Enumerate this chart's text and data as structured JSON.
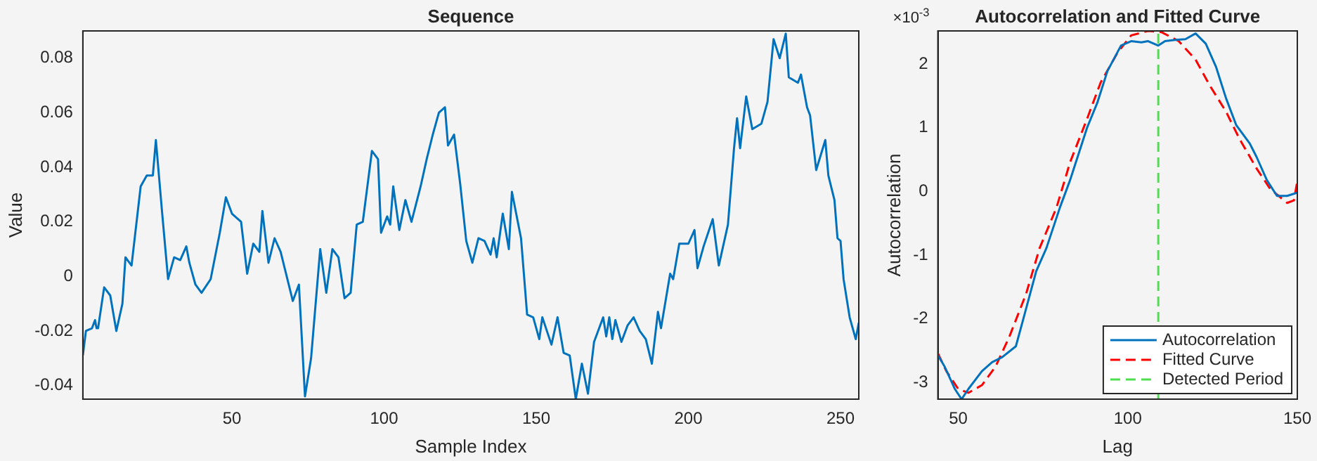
{
  "chart_data": [
    {
      "type": "line",
      "title": "Sequence",
      "xlabel": "Sample Index",
      "ylabel": "Value",
      "xlim": [
        1,
        256
      ],
      "xticks": [
        50,
        100,
        150,
        200,
        250
      ],
      "ylim": [
        -0.045,
        0.09
      ],
      "yticks": [
        -0.04,
        -0.02,
        0,
        0.02,
        0.04,
        0.06,
        0.08
      ],
      "grid": false,
      "marker": "none",
      "series": [
        {
          "color": "#0072bd",
          "x": [
            1,
            2,
            4,
            5,
            5.5,
            6,
            8,
            10,
            12,
            14,
            15,
            17,
            20,
            22,
            24,
            25,
            27,
            29,
            31,
            33,
            35,
            36,
            38,
            40,
            43,
            46,
            48,
            50,
            53,
            55,
            57,
            59,
            60,
            62,
            64,
            66,
            68,
            70,
            72,
            74,
            76,
            79,
            81,
            83,
            85,
            87,
            89,
            91,
            93,
            96,
            98,
            99,
            101,
            102,
            103,
            105,
            107,
            109,
            112,
            114,
            116,
            118,
            120,
            121,
            123,
            125,
            127,
            129,
            131,
            133,
            135,
            136,
            137,
            139,
            141,
            142,
            145,
            147,
            149,
            151,
            152,
            155,
            157,
            159,
            161,
            163,
            165,
            167,
            169,
            172,
            173,
            174,
            175,
            176,
            178,
            180,
            182,
            184,
            186,
            188,
            190,
            191,
            194,
            195,
            197,
            200,
            202,
            203,
            205,
            208,
            210,
            213,
            215,
            216,
            217,
            219,
            221,
            224,
            226,
            228,
            230,
            232,
            233,
            236,
            237,
            239,
            240,
            242,
            245,
            246,
            248,
            249,
            250,
            251,
            253,
            255,
            256
          ],
          "values": [
            -0.029,
            -0.02,
            -0.019,
            -0.016,
            -0.019,
            -0.019,
            -0.004,
            -0.007,
            -0.02,
            -0.01,
            0.007,
            0.004,
            0.033,
            0.037,
            0.037,
            0.05,
            0.024,
            -0.001,
            0.007,
            0.006,
            0.011,
            0.005,
            -0.003,
            -0.006,
            -0.001,
            0.016,
            0.029,
            0.023,
            0.02,
            0.001,
            0.012,
            0.009,
            0.024,
            0.005,
            0.014,
            0.009,
            0,
            -0.009,
            -0.003,
            -0.044,
            -0.03,
            0.01,
            -0.006,
            0.01,
            0.007,
            -0.008,
            -0.006,
            0.019,
            0.02,
            0.046,
            0.043,
            0.016,
            0.022,
            0.019,
            0.033,
            0.017,
            0.028,
            0.02,
            0.033,
            0.043,
            0.052,
            0.06,
            0.062,
            0.048,
            0.052,
            0.034,
            0.013,
            0.005,
            0.014,
            0.013,
            0.008,
            0.014,
            0.007,
            0.023,
            0.01,
            0.031,
            0.014,
            -0.014,
            -0.015,
            -0.023,
            -0.015,
            -0.025,
            -0.015,
            -0.028,
            -0.029,
            -0.045,
            -0.032,
            -0.043,
            -0.024,
            -0.015,
            -0.022,
            -0.015,
            -0.023,
            -0.016,
            -0.024,
            -0.018,
            -0.015,
            -0.02,
            -0.023,
            -0.032,
            -0.013,
            -0.019,
            0.001,
            -0.001,
            0.012,
            0.012,
            0.017,
            0.003,
            0.011,
            0.021,
            0.004,
            0.019,
            0.047,
            0.058,
            0.047,
            0.066,
            0.054,
            0.056,
            0.064,
            0.087,
            0.08,
            0.089,
            0.073,
            0.071,
            0.074,
            0.062,
            0.059,
            0.039,
            0.05,
            0.037,
            0.028,
            0.014,
            0.013,
            -0.001,
            -0.015,
            -0.023,
            -0.017
          ]
        }
      ]
    },
    {
      "type": "line",
      "title": "Autocorrelation and Fitted Curve",
      "xlabel": "Lag",
      "ylabel": "Autocorrelation",
      "annotations": [
        "×10$^{-3}$"
      ],
      "xlim": [
        44,
        150
      ],
      "xticks": [
        50,
        100,
        150
      ],
      "ylim": [
        -3.26,
        2.52
      ],
      "yticks": [
        -3,
        -2,
        -1,
        0,
        1,
        2
      ],
      "grid": false,
      "marker": "none",
      "legend": "bottom right",
      "series": [
        {
          "name": "Autocorrelation",
          "color": "#0072bd",
          "line_style": "solid",
          "x": [
            44,
            46,
            49,
            51,
            53,
            57,
            60,
            63,
            67,
            69,
            73,
            76,
            80,
            83,
            88,
            91,
            94,
            98,
            101,
            104,
            106,
            109,
            111,
            114,
            117,
            120,
            123,
            126,
            129,
            132,
            136,
            138,
            141,
            144,
            147,
            150
          ],
          "values": [
            -2.57,
            -2.75,
            -3.1,
            -3.26,
            -3.1,
            -2.82,
            -2.68,
            -2.6,
            -2.43,
            -2.04,
            -1.25,
            -0.89,
            -0.25,
            0.18,
            1.0,
            1.39,
            1.89,
            2.29,
            2.36,
            2.34,
            2.36,
            2.29,
            2.36,
            2.38,
            2.39,
            2.48,
            2.32,
            1.96,
            1.46,
            1.04,
            0.75,
            0.54,
            0.18,
            -0.07,
            -0.07,
            -0.02
          ]
        },
        {
          "name": "Fitted Curve",
          "color": "#ff0000",
          "line_style": "dashed",
          "x": [
            44,
            46.5,
            50,
            53,
            57,
            61,
            65,
            70,
            74,
            79,
            83,
            88,
            92,
            97,
            101,
            106,
            110,
            115,
            120,
            124,
            129,
            133,
            138,
            142,
            147,
            149,
            150
          ],
          "values": [
            -2.54,
            -2.82,
            -3.1,
            -3.16,
            -3.04,
            -2.75,
            -2.29,
            -1.61,
            -0.89,
            -0.25,
            0.46,
            1.14,
            1.71,
            2.18,
            2.45,
            2.52,
            2.5,
            2.36,
            2.07,
            1.68,
            1.25,
            0.82,
            0.36,
            0.04,
            -0.18,
            -0.14,
            0.16
          ]
        }
      ],
      "ref_lines": [
        {
          "axis": "x",
          "value": 109,
          "label": "Detected Period",
          "color": "#4ddf4d",
          "line_style": "dashed"
        }
      ]
    }
  ]
}
